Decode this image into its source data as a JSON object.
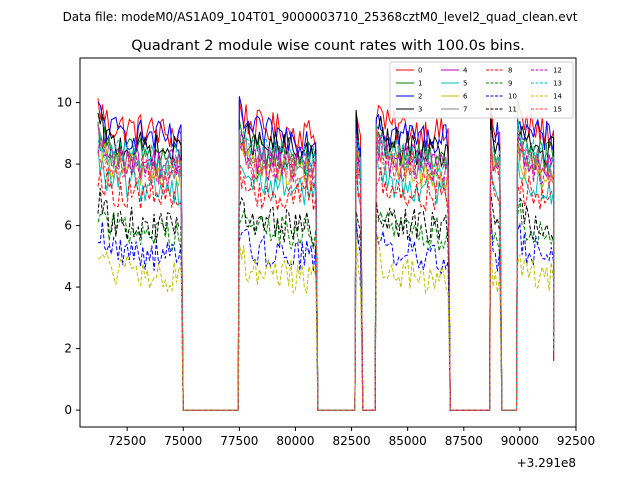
{
  "chart_data": {
    "type": "line",
    "supertitle": "Data file: modeM0/AS1A09_104T01_9000003710_25368cztM0_level2_quad_clean.evt",
    "title": "Quadrant 2 module wise count rates with 100.0s bins.",
    "xlabel": "",
    "ylabel": "",
    "x_offset_label": "+3.291e8",
    "xlim": [
      70400,
      92500
    ],
    "ylim": [
      -0.55,
      11.45
    ],
    "xticks": [
      72500,
      75000,
      77500,
      80000,
      82500,
      85000,
      87500,
      90000,
      92500
    ],
    "xtick_labels": [
      "72500",
      "75000",
      "77500",
      "80000",
      "82500",
      "85000",
      "87500",
      "90000",
      "92500"
    ],
    "yticks": [
      0,
      2,
      4,
      6,
      8,
      10
    ],
    "ytick_labels": [
      "0",
      "2",
      "4",
      "6",
      "8",
      "10"
    ],
    "legend_position": "upper right",
    "segments": [
      {
        "start": 71200,
        "end": 74900
      },
      {
        "start": 77500,
        "end": 80900
      },
      {
        "start": 82700,
        "end": 82900
      },
      {
        "start": 83600,
        "end": 86800
      },
      {
        "start": 88700,
        "end": 89100
      },
      {
        "start": 89900,
        "end": 91500
      }
    ],
    "series": [
      {
        "name": "0",
        "color": "#ff0000",
        "dash": "solid",
        "level": 9.3
      },
      {
        "name": "1",
        "color": "#008000",
        "dash": "solid",
        "level": 8.5
      },
      {
        "name": "2",
        "color": "#0000ff",
        "dash": "solid",
        "level": 9.1
      },
      {
        "name": "3",
        "color": "#000000",
        "dash": "solid",
        "level": 8.7
      },
      {
        "name": "4",
        "color": "#bf00bf",
        "dash": "solid",
        "level": 8.3
      },
      {
        "name": "5",
        "color": "#00bfbf",
        "dash": "solid",
        "level": 7.5
      },
      {
        "name": "6",
        "color": "#bfbf00",
        "dash": "solid",
        "level": 8.0
      },
      {
        "name": "7",
        "color": "#808080",
        "dash": "solid",
        "level": 8.2
      },
      {
        "name": "8",
        "color": "#ff0000",
        "dash": "dashed",
        "level": 7.2
      },
      {
        "name": "9",
        "color": "#008000",
        "dash": "dashed",
        "level": 6.0
      },
      {
        "name": "10",
        "color": "#0000ff",
        "dash": "dashed",
        "level": 5.3
      },
      {
        "name": "11",
        "color": "#000000",
        "dash": "dashed",
        "level": 6.2
      },
      {
        "name": "12",
        "color": "#bf00bf",
        "dash": "dashed",
        "level": 8.1
      },
      {
        "name": "13",
        "color": "#00bfbf",
        "dash": "dashed",
        "level": 8.4
      },
      {
        "name": "14",
        "color": "#bfbf00",
        "dash": "dashed",
        "level": 4.6
      },
      {
        "name": "15",
        "color": "#ff4040",
        "dash": "dashed",
        "level": 8.0
      }
    ]
  }
}
